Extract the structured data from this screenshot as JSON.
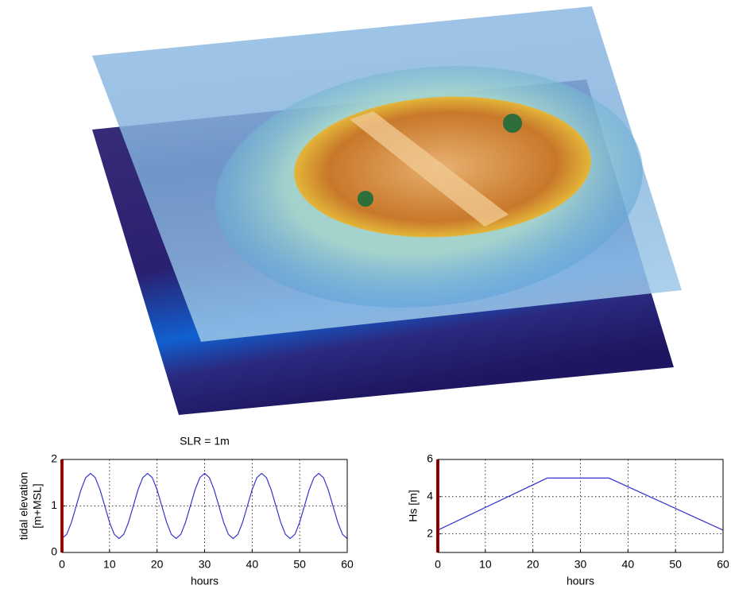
{
  "chart_data": [
    {
      "type": "line",
      "title": "SLR = 1m",
      "xlabel": "hours",
      "ylabel": [
        "tidal elevation",
        "[m+MSL]"
      ],
      "x": [
        0,
        1,
        2,
        3,
        4,
        5,
        6,
        7,
        8,
        9,
        10,
        11,
        12,
        13,
        14,
        15,
        16,
        17,
        18,
        19,
        20,
        21,
        22,
        23,
        24,
        25,
        26,
        27,
        28,
        29,
        30,
        31,
        32,
        33,
        34,
        35,
        36,
        37,
        38,
        39,
        40,
        41,
        42,
        43,
        44,
        45,
        46,
        47,
        48,
        49,
        50,
        51,
        52,
        53,
        54,
        55,
        56,
        57,
        58,
        59,
        60
      ],
      "series": [
        {
          "color": "#3333cc",
          "values": [
            0.3,
            0.39,
            0.65,
            1.0,
            1.35,
            1.61,
            1.7,
            1.61,
            1.35,
            1.0,
            0.65,
            0.39,
            0.3,
            0.39,
            0.65,
            1.0,
            1.35,
            1.61,
            1.7,
            1.61,
            1.35,
            1.0,
            0.65,
            0.39,
            0.3,
            0.39,
            0.65,
            1.0,
            1.35,
            1.61,
            1.7,
            1.61,
            1.35,
            1.0,
            0.65,
            0.39,
            0.3,
            0.39,
            0.65,
            1.0,
            1.35,
            1.61,
            1.7,
            1.61,
            1.35,
            1.0,
            0.65,
            0.39,
            0.3,
            0.39,
            0.65,
            1.0,
            1.35,
            1.61,
            1.7,
            1.61,
            1.35,
            1.0,
            0.65,
            0.39,
            0.3
          ]
        }
      ],
      "marker_x": 0,
      "marker_color": "#cc0000",
      "xlim": [
        0,
        60
      ],
      "xticks": [
        0,
        10,
        20,
        30,
        40,
        50,
        60
      ],
      "ylim": [
        0,
        2
      ],
      "yticks": [
        0,
        1,
        2
      ],
      "grid": true
    },
    {
      "type": "line",
      "xlabel": "hours",
      "ylabel": [
        "Hs [m]"
      ],
      "x": [
        0,
        23,
        36,
        60
      ],
      "series": [
        {
          "color": "#3333cc",
          "values": [
            2.2,
            5,
            5,
            2.2
          ]
        }
      ],
      "marker_x": 0,
      "marker_color": "#cc0000",
      "xlim": [
        0,
        60
      ],
      "xticks": [
        0,
        10,
        20,
        30,
        40,
        50,
        60
      ],
      "ylim": [
        1,
        6
      ],
      "yticks": [
        2,
        4,
        6
      ],
      "grid": true
    }
  ]
}
